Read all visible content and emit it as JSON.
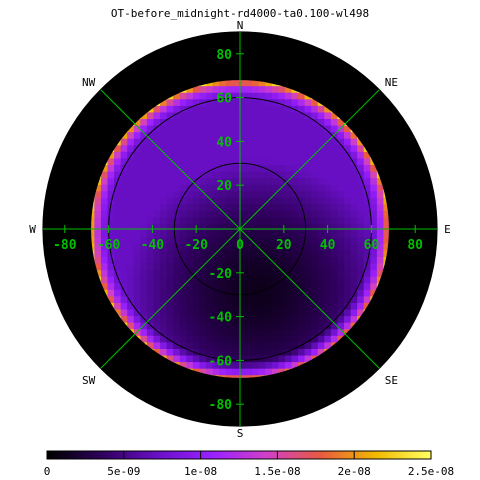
{
  "title": "OT-before_midnight-rd4000-ta0.100-wl498",
  "chart_data": {
    "type": "heatmap",
    "projection": "polar",
    "title": "OT-before_midnight-rd4000-ta0.100-wl498",
    "xlabel": "",
    "ylabel": "",
    "xlim": [
      -90,
      90
    ],
    "ylim": [
      -90,
      90
    ],
    "grid": true,
    "x_ticks": [
      -80,
      -60,
      -40,
      -20,
      0,
      20,
      40,
      60,
      80
    ],
    "y_ticks": [
      80,
      60,
      40,
      20,
      0,
      -20,
      -40,
      -60,
      -80
    ],
    "ring_angles": [
      30,
      60,
      90
    ],
    "data_extent_angle": 68,
    "compass": [
      {
        "label": "N",
        "azimuth": 0
      },
      {
        "label": "NE",
        "azimuth": 45
      },
      {
        "label": "E",
        "azimuth": 90
      },
      {
        "label": "SE",
        "azimuth": 135
      },
      {
        "label": "S",
        "azimuth": 180
      },
      {
        "label": "SW",
        "azimuth": 225
      },
      {
        "label": "W",
        "azimuth": 270
      },
      {
        "label": "NW",
        "azimuth": 315
      }
    ],
    "field": {
      "min_center": [
        8,
        -28
      ],
      "center_value": 1e-09,
      "ring_60_value": 7e-09,
      "edge_value": 2e-08,
      "units_note": ""
    },
    "colorbar": {
      "min": 0,
      "max": 2.5e-08,
      "tick_values": [
        0,
        5e-09,
        1e-08,
        1.5e-08,
        2e-08,
        2.5e-08
      ],
      "tick_labels": [
        "0",
        "5e-09",
        "1e-08",
        "1.5e-08",
        "2e-08",
        "2.5e-08"
      ],
      "colormap": [
        "#000000",
        "#30005f",
        "#6a10c8",
        "#9a20ff",
        "#d040c8",
        "#e85a40",
        "#f0b800",
        "#ffff60"
      ]
    }
  },
  "colors": {
    "background": "#ffffff",
    "disk": "#000000",
    "grid": "#00c000",
    "ring": "#000000",
    "tick_label": "#00c000",
    "text": "#000000"
  }
}
